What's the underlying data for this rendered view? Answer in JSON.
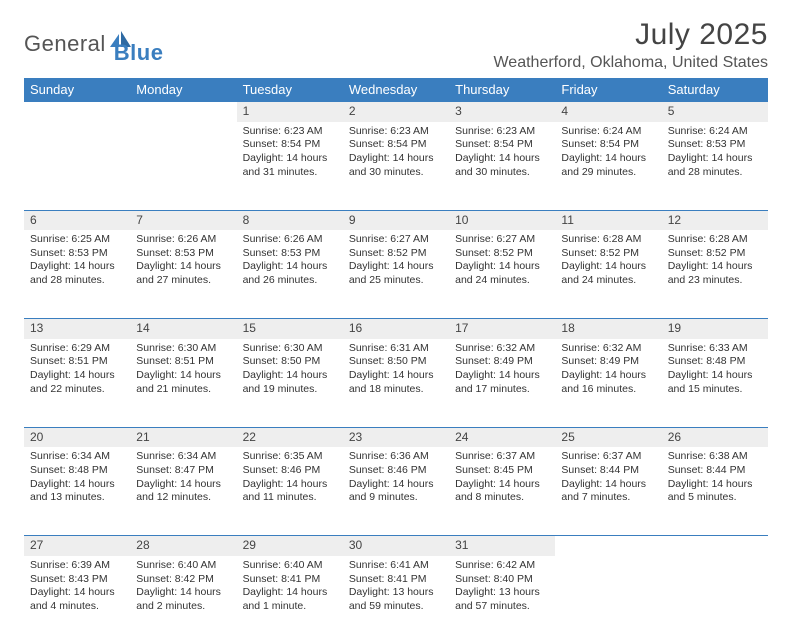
{
  "brand": {
    "part1": "General",
    "part2": "Blue"
  },
  "title": "July 2025",
  "location": "Weatherford, Oklahoma, United States",
  "colors": {
    "accent": "#3a7ebf",
    "header_bg": "#3a7ebf",
    "header_fg": "#ffffff",
    "daynum_bg": "#eeeeee",
    "text": "#333333"
  },
  "columns": [
    "Sunday",
    "Monday",
    "Tuesday",
    "Wednesday",
    "Thursday",
    "Friday",
    "Saturday"
  ],
  "weeks": [
    [
      null,
      null,
      {
        "n": "1",
        "sr": "6:23 AM",
        "ss": "8:54 PM",
        "dl": "14 hours and 31 minutes."
      },
      {
        "n": "2",
        "sr": "6:23 AM",
        "ss": "8:54 PM",
        "dl": "14 hours and 30 minutes."
      },
      {
        "n": "3",
        "sr": "6:23 AM",
        "ss": "8:54 PM",
        "dl": "14 hours and 30 minutes."
      },
      {
        "n": "4",
        "sr": "6:24 AM",
        "ss": "8:54 PM",
        "dl": "14 hours and 29 minutes."
      },
      {
        "n": "5",
        "sr": "6:24 AM",
        "ss": "8:53 PM",
        "dl": "14 hours and 28 minutes."
      }
    ],
    [
      {
        "n": "6",
        "sr": "6:25 AM",
        "ss": "8:53 PM",
        "dl": "14 hours and 28 minutes."
      },
      {
        "n": "7",
        "sr": "6:26 AM",
        "ss": "8:53 PM",
        "dl": "14 hours and 27 minutes."
      },
      {
        "n": "8",
        "sr": "6:26 AM",
        "ss": "8:53 PM",
        "dl": "14 hours and 26 minutes."
      },
      {
        "n": "9",
        "sr": "6:27 AM",
        "ss": "8:52 PM",
        "dl": "14 hours and 25 minutes."
      },
      {
        "n": "10",
        "sr": "6:27 AM",
        "ss": "8:52 PM",
        "dl": "14 hours and 24 minutes."
      },
      {
        "n": "11",
        "sr": "6:28 AM",
        "ss": "8:52 PM",
        "dl": "14 hours and 24 minutes."
      },
      {
        "n": "12",
        "sr": "6:28 AM",
        "ss": "8:52 PM",
        "dl": "14 hours and 23 minutes."
      }
    ],
    [
      {
        "n": "13",
        "sr": "6:29 AM",
        "ss": "8:51 PM",
        "dl": "14 hours and 22 minutes."
      },
      {
        "n": "14",
        "sr": "6:30 AM",
        "ss": "8:51 PM",
        "dl": "14 hours and 21 minutes."
      },
      {
        "n": "15",
        "sr": "6:30 AM",
        "ss": "8:50 PM",
        "dl": "14 hours and 19 minutes."
      },
      {
        "n": "16",
        "sr": "6:31 AM",
        "ss": "8:50 PM",
        "dl": "14 hours and 18 minutes."
      },
      {
        "n": "17",
        "sr": "6:32 AM",
        "ss": "8:49 PM",
        "dl": "14 hours and 17 minutes."
      },
      {
        "n": "18",
        "sr": "6:32 AM",
        "ss": "8:49 PM",
        "dl": "14 hours and 16 minutes."
      },
      {
        "n": "19",
        "sr": "6:33 AM",
        "ss": "8:48 PM",
        "dl": "14 hours and 15 minutes."
      }
    ],
    [
      {
        "n": "20",
        "sr": "6:34 AM",
        "ss": "8:48 PM",
        "dl": "14 hours and 13 minutes."
      },
      {
        "n": "21",
        "sr": "6:34 AM",
        "ss": "8:47 PM",
        "dl": "14 hours and 12 minutes."
      },
      {
        "n": "22",
        "sr": "6:35 AM",
        "ss": "8:46 PM",
        "dl": "14 hours and 11 minutes."
      },
      {
        "n": "23",
        "sr": "6:36 AM",
        "ss": "8:46 PM",
        "dl": "14 hours and 9 minutes."
      },
      {
        "n": "24",
        "sr": "6:37 AM",
        "ss": "8:45 PM",
        "dl": "14 hours and 8 minutes."
      },
      {
        "n": "25",
        "sr": "6:37 AM",
        "ss": "8:44 PM",
        "dl": "14 hours and 7 minutes."
      },
      {
        "n": "26",
        "sr": "6:38 AM",
        "ss": "8:44 PM",
        "dl": "14 hours and 5 minutes."
      }
    ],
    [
      {
        "n": "27",
        "sr": "6:39 AM",
        "ss": "8:43 PM",
        "dl": "14 hours and 4 minutes."
      },
      {
        "n": "28",
        "sr": "6:40 AM",
        "ss": "8:42 PM",
        "dl": "14 hours and 2 minutes."
      },
      {
        "n": "29",
        "sr": "6:40 AM",
        "ss": "8:41 PM",
        "dl": "14 hours and 1 minute."
      },
      {
        "n": "30",
        "sr": "6:41 AM",
        "ss": "8:41 PM",
        "dl": "13 hours and 59 minutes."
      },
      {
        "n": "31",
        "sr": "6:42 AM",
        "ss": "8:40 PM",
        "dl": "13 hours and 57 minutes."
      },
      null,
      null
    ]
  ],
  "labels": {
    "sunrise": "Sunrise:",
    "sunset": "Sunset:",
    "daylight": "Daylight:"
  }
}
